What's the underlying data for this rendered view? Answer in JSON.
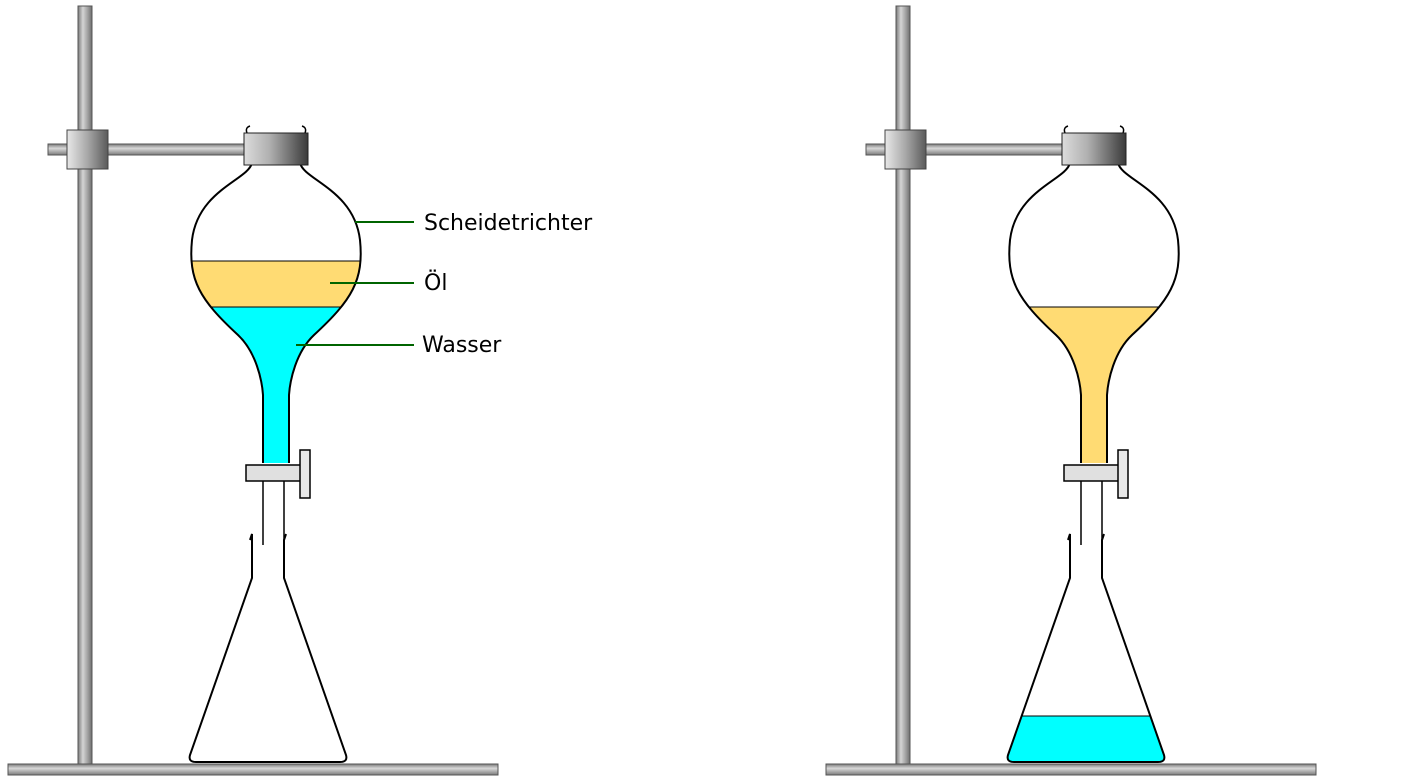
{
  "labels": {
    "funnel": "Scheidetrichter",
    "oil": "Öl",
    "water": "Wasser"
  },
  "colors": {
    "oil": "#FFDB73",
    "water": "#00FFFF",
    "leader_line": "#006400",
    "stand_metal": "#A6A6A6",
    "background": "#FFFFFF"
  }
}
